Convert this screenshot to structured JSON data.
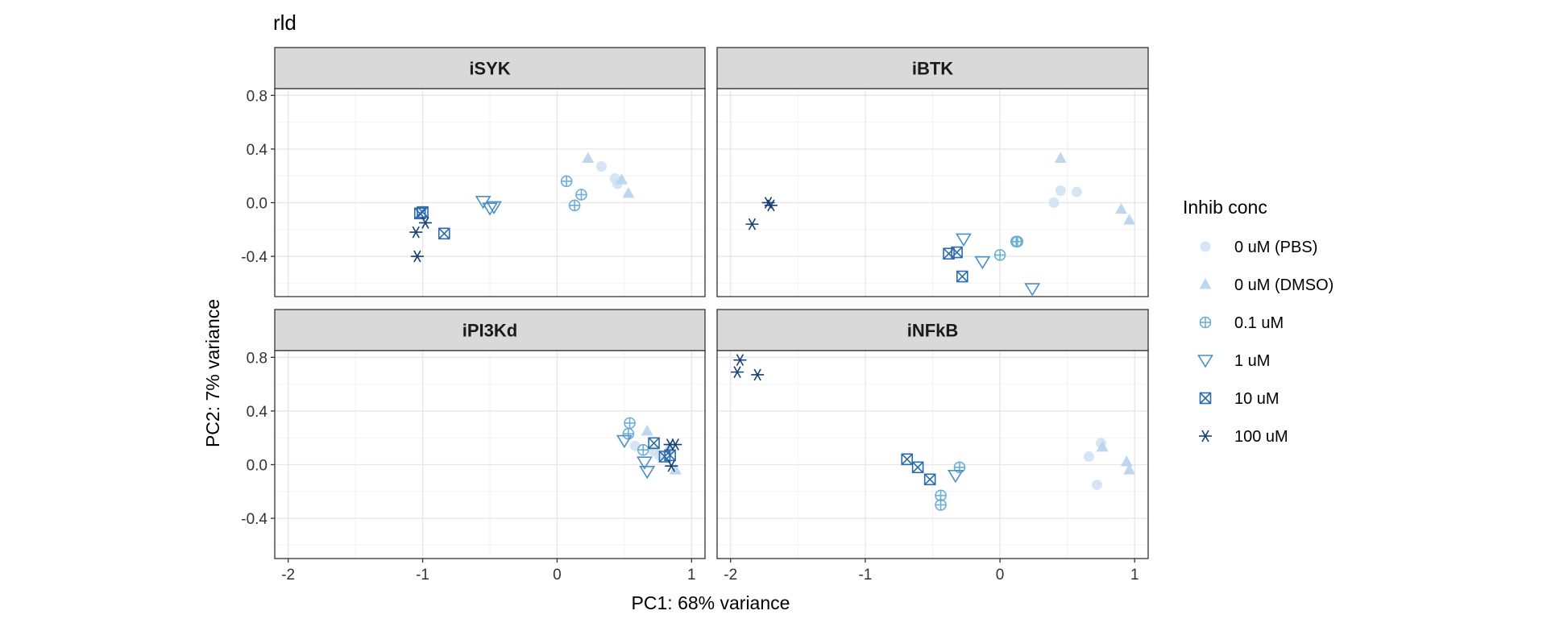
{
  "chart_data": {
    "type": "scatter",
    "title": "rld",
    "xlabel": "PC1: 68% variance",
    "ylabel": "PC2: 7% variance",
    "xlim": [
      -2.1,
      1.1
    ],
    "ylim": [
      -0.7,
      0.85
    ],
    "x_ticks": [
      -2,
      -1,
      0,
      1
    ],
    "x_tick_labels": [
      "-2",
      "-1",
      "0",
      "1"
    ],
    "y_ticks": [
      -0.4,
      0,
      0.4,
      0.8
    ],
    "y_tick_labels": [
      "-0.4",
      "0.0",
      "0.4",
      "0.8"
    ],
    "grid": true,
    "legend": {
      "title": "Inhib conc",
      "position": "right",
      "entries": [
        {
          "label": "0 uM (PBS)",
          "shape": "circle",
          "color": "#cfe1f2"
        },
        {
          "label": "0 uM (DMSO)",
          "shape": "triangle",
          "color": "#b8d3ec"
        },
        {
          "label": "0.1 uM",
          "shape": "circle-plus",
          "color": "#6aaed6"
        },
        {
          "label": "1 uM",
          "shape": "triangle-down",
          "color": "#4a8fc8"
        },
        {
          "label": "10 uM",
          "shape": "square-x",
          "color": "#2a6aab"
        },
        {
          "label": "100 uM",
          "shape": "asterisk",
          "color": "#173f72"
        }
      ]
    },
    "panels": [
      {
        "name": "iSYK",
        "series": [
          {
            "name": "0 uM (PBS)",
            "points": [
              [
                0.33,
                0.27
              ],
              [
                0.43,
                0.18
              ],
              [
                0.45,
                0.14
              ]
            ]
          },
          {
            "name": "0 uM (DMSO)",
            "points": [
              [
                0.23,
                0.33
              ],
              [
                0.48,
                0.17
              ],
              [
                0.53,
                0.07
              ]
            ]
          },
          {
            "name": "0.1 uM",
            "points": [
              [
                0.07,
                0.16
              ],
              [
                0.13,
                -0.02
              ],
              [
                0.18,
                0.06
              ]
            ]
          },
          {
            "name": "1 uM",
            "points": [
              [
                -0.55,
                0.01
              ],
              [
                -0.5,
                -0.04
              ],
              [
                -0.47,
                -0.03
              ]
            ]
          },
          {
            "name": "10 uM",
            "points": [
              [
                -1.02,
                -0.08
              ],
              [
                -1.0,
                -0.07
              ],
              [
                -0.84,
                -0.23
              ]
            ]
          },
          {
            "name": "100 uM",
            "points": [
              [
                -1.05,
                -0.22
              ],
              [
                -0.98,
                -0.15
              ],
              [
                -1.04,
                -0.4
              ]
            ]
          }
        ]
      },
      {
        "name": "iBTK",
        "series": [
          {
            "name": "0 uM (PBS)",
            "points": [
              [
                0.4,
                0.0
              ],
              [
                0.45,
                0.09
              ],
              [
                0.57,
                0.08
              ]
            ]
          },
          {
            "name": "0 uM (DMSO)",
            "points": [
              [
                0.45,
                0.33
              ],
              [
                0.9,
                -0.05
              ],
              [
                0.96,
                -0.13
              ]
            ]
          },
          {
            "name": "0.1 uM",
            "points": [
              [
                0.0,
                -0.39
              ],
              [
                0.12,
                -0.29
              ],
              [
                0.13,
                -0.29
              ]
            ]
          },
          {
            "name": "1 uM",
            "points": [
              [
                -0.27,
                -0.27
              ],
              [
                -0.13,
                -0.44
              ],
              [
                0.24,
                -0.64
              ]
            ]
          },
          {
            "name": "10 uM",
            "points": [
              [
                -0.38,
                -0.38
              ],
              [
                -0.32,
                -0.37
              ],
              [
                -0.28,
                -0.55
              ]
            ]
          },
          {
            "name": "100 uM",
            "points": [
              [
                -1.72,
                0.0
              ],
              [
                -1.7,
                -0.02
              ],
              [
                -1.84,
                -0.16
              ]
            ]
          }
        ]
      },
      {
        "name": "iPI3Kd",
        "series": [
          {
            "name": "0 uM (PBS)",
            "points": [
              [
                0.58,
                0.14
              ],
              [
                0.72,
                0.1
              ],
              [
                0.76,
                0.07
              ]
            ]
          },
          {
            "name": "0 uM (DMSO)",
            "points": [
              [
                0.67,
                0.25
              ],
              [
                0.83,
                0.12
              ],
              [
                0.88,
                -0.04
              ]
            ]
          },
          {
            "name": "0.1 uM",
            "points": [
              [
                0.54,
                0.31
              ],
              [
                0.53,
                0.23
              ],
              [
                0.64,
                0.11
              ]
            ]
          },
          {
            "name": "1 uM",
            "points": [
              [
                0.5,
                0.18
              ],
              [
                0.65,
                0.02
              ],
              [
                0.67,
                -0.05
              ]
            ]
          },
          {
            "name": "10 uM",
            "points": [
              [
                0.72,
                0.16
              ],
              [
                0.8,
                0.06
              ],
              [
                0.84,
                0.07
              ]
            ]
          },
          {
            "name": "100 uM",
            "points": [
              [
                0.84,
                0.15
              ],
              [
                0.88,
                0.15
              ],
              [
                0.85,
                -0.01
              ]
            ]
          }
        ]
      },
      {
        "name": "iNFkB",
        "series": [
          {
            "name": "0 uM (PBS)",
            "points": [
              [
                0.66,
                0.06
              ],
              [
                0.75,
                0.16
              ],
              [
                0.72,
                -0.15
              ]
            ]
          },
          {
            "name": "0 uM (DMSO)",
            "points": [
              [
                0.76,
                0.13
              ],
              [
                0.94,
                0.02
              ],
              [
                0.96,
                -0.04
              ]
            ]
          },
          {
            "name": "0.1 uM",
            "points": [
              [
                -0.3,
                -0.02
              ],
              [
                -0.44,
                -0.23
              ],
              [
                -0.44,
                -0.3
              ]
            ]
          },
          {
            "name": "1 uM",
            "points": [
              [
                -0.33,
                -0.08
              ]
            ]
          },
          {
            "name": "10 uM",
            "points": [
              [
                -0.69,
                0.04
              ],
              [
                -0.61,
                -0.02
              ],
              [
                -0.52,
                -0.11
              ]
            ]
          },
          {
            "name": "100 uM",
            "points": [
              [
                -1.93,
                0.78
              ],
              [
                -1.95,
                0.69
              ],
              [
                -1.8,
                0.67
              ]
            ]
          }
        ]
      }
    ]
  }
}
